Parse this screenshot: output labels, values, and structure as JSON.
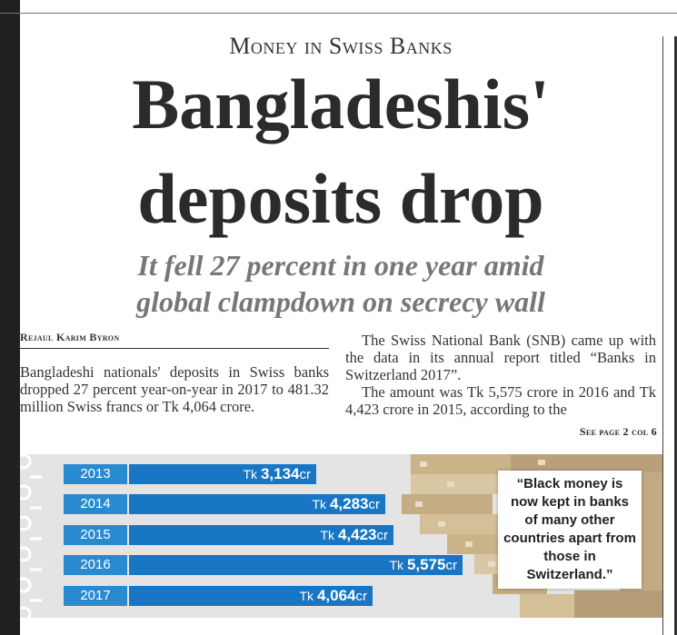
{
  "article": {
    "kicker": "Money in Swiss Banks",
    "headline_line1": "Bangladeshis'",
    "headline_line2": "deposits drop",
    "deck_line1": "It fell 27 percent in one year amid",
    "deck_line2": "global clampdown on secrecy wall",
    "byline": "Rejaul Karim Byron",
    "col1_text": "Bangladeshi nationals' deposits in Swiss banks dropped 27 percent year-on-year in 2017 to 481.32 million Swiss francs or Tk 4,064 crore.",
    "col2_para1": "The Swiss National Bank (SNB) came up with the data in its annual report titled “Banks in Switzerland 2017”.",
    "col2_para2": "The amount was Tk 5,575 crore in 2016 and Tk 4,423 crore in 2015, according to the",
    "see_page": "See page 2 col 6"
  },
  "graphic": {
    "quote": "“Black money is now kept in banks of many other countries apart from those in Switzerland.”",
    "bar_color": "#1876c4",
    "year_color": "#2a8ad0"
  },
  "chart_data": {
    "type": "bar",
    "orientation": "horizontal",
    "categories": [
      "2013",
      "2014",
      "2015",
      "2016",
      "2017"
    ],
    "values": [
      3134,
      4283,
      4423,
      5575,
      4064
    ],
    "labels": [
      "3,134",
      "4,283",
      "4,423",
      "5,575",
      "4,064"
    ],
    "prefix": "Tk",
    "suffix": "cr"
  }
}
